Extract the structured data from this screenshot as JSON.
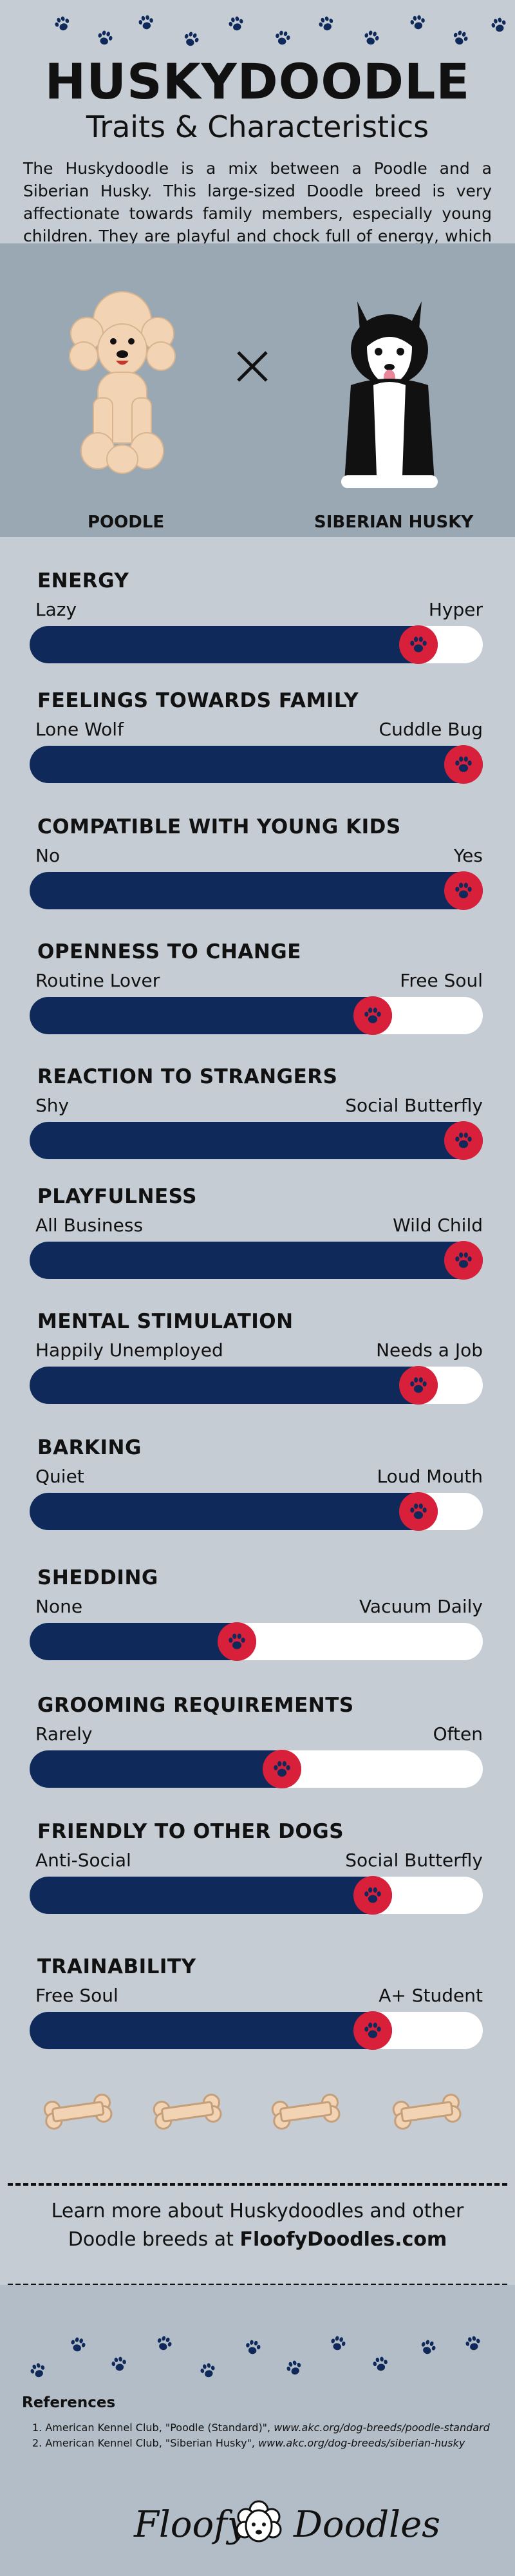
{
  "header": {
    "title": "HUSKYDOODLE",
    "subtitle": "Traits & Characteristics",
    "intro": "The Huskydoodle is a mix between a Poodle and a Siberian Husky. This large-sized Doodle breed is very affectionate towards family members, especially young children. They are playful and chock full of energy, which is perfect for active families."
  },
  "breeds": {
    "left": "POODLE",
    "right": "SIBERIAN HUSKY"
  },
  "colors": {
    "bar_fill": "#0f2a5a",
    "bar_track": "#ffffff",
    "knob": "#d8203a",
    "background": "#c5ccd3",
    "paw": "#0f2a5a"
  },
  "traits": [
    {
      "title": "ENERGY",
      "low": "Lazy",
      "high": "Hyper",
      "level": 0.9
    },
    {
      "title": "FEELINGS TOWARDS FAMILY",
      "low": "Lone Wolf",
      "high": "Cuddle Bug",
      "level": 1.0
    },
    {
      "title": "COMPATIBLE WITH YOUNG KIDS",
      "low": "No",
      "high": "Yes",
      "level": 1.0
    },
    {
      "title": "OPENNESS TO CHANGE",
      "low": "Routine Lover",
      "high": "Free Soul",
      "level": 0.8
    },
    {
      "title": "REACTION TO STRANGERS",
      "low": "Shy",
      "high": "Social Butterfly",
      "level": 1.0
    },
    {
      "title": "PLAYFULNESS",
      "low": "All Business",
      "high": "Wild Child",
      "level": 1.0
    },
    {
      "title": "MENTAL STIMULATION",
      "low": "Happily Unemployed",
      "high": "Needs a Job",
      "level": 0.9
    },
    {
      "title": "BARKING",
      "low": "Quiet",
      "high": "Loud Mouth",
      "level": 0.9
    },
    {
      "title": "SHEDDING",
      "low": "None",
      "high": "Vacuum Daily",
      "level": 0.5
    },
    {
      "title": "GROOMING REQUIREMENTS",
      "low": "Rarely",
      "high": "Often",
      "level": 0.6
    },
    {
      "title": "FRIENDLY TO OTHER DOGS",
      "low": "Anti-Social",
      "high": "Social Butterfly",
      "level": 0.8
    },
    {
      "title": "TRAINABILITY",
      "low": "Free Soul",
      "high": "A+ Student",
      "level": 0.8
    }
  ],
  "learn_more": {
    "line1": "Learn more about Huskydoodles and other",
    "line2_prefix": "Doodle breeds at ",
    "line2_link": "FloofyDoodles.com"
  },
  "references": {
    "title": "References",
    "items": [
      {
        "text": "1. American Kennel Club, \"Poodle (Standard)\", ",
        "link": "www.akc.org/dog-breeds/poodle-standard"
      },
      {
        "text": "2. American Kennel Club, \"Siberian Husky\", ",
        "link": "www.akc.org/dog-breeds/siberian-husky"
      }
    ]
  },
  "brand": {
    "left": "Floofy",
    "right": "Doodles"
  },
  "icons": {
    "paw": "paw-icon",
    "bone": "bone-icon",
    "times": "times-icon"
  }
}
